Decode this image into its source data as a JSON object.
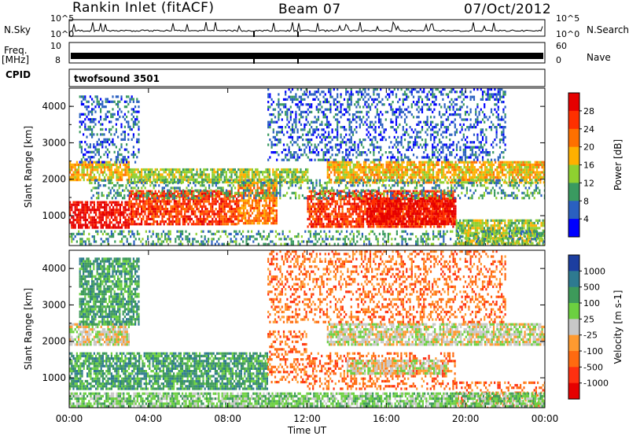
{
  "header": {
    "station": "Rankin Inlet (fitACF)",
    "beam": "Beam 07",
    "date": "07/Oct/2012"
  },
  "top_panels": {
    "nsky_label": "N.Sky",
    "nsky_ticks": [
      "10^5",
      "10^0"
    ],
    "nsearch_label": "N.Search",
    "nsearch_ticks": [
      "10^5",
      "10^0"
    ],
    "freq_label": "Freq.",
    "freq_unit": "[MHz]",
    "freq_ticks": [
      "10",
      "8"
    ],
    "nave_label": "Nave",
    "nave_ticks": [
      "60",
      "0"
    ],
    "cpid_label": "CPID",
    "cpid_value": "twofsound 3501"
  },
  "chart_data": [
    {
      "type": "heatmap",
      "name": "power",
      "ylabel": "Slant Range [km]",
      "ylim": [
        180,
        4500
      ],
      "yticks": [
        1000,
        2000,
        3000,
        4000
      ],
      "xlim": [
        0,
        24
      ],
      "colorbar": {
        "label": "Power [dB]",
        "ticks": [
          "28",
          "24",
          "20",
          "16",
          "12",
          "8",
          "4"
        ],
        "colors": [
          "#e60000",
          "#ff3000",
          "#ff7000",
          "#ffb000",
          "#8fd030",
          "#3a9a60",
          "#2a60c0",
          "#0000ff"
        ]
      },
      "bands": [
        {
          "t0": 0.0,
          "t1": 3.0,
          "r0": 700,
          "r1": 1400,
          "level": 0
        },
        {
          "t0": 3.0,
          "t1": 8.5,
          "r0": 800,
          "r1": 1700,
          "level": 1
        },
        {
          "t0": 8.5,
          "t1": 10.5,
          "r0": 800,
          "r1": 2000,
          "level": 2
        },
        {
          "t0": 12.0,
          "t1": 19.5,
          "r0": 700,
          "r1": 1700,
          "level": 1
        },
        {
          "t0": 15.0,
          "t1": 19.5,
          "r0": 800,
          "r1": 1500,
          "level": 0
        },
        {
          "t0": 19.5,
          "t1": 24.0,
          "r0": 200,
          "r1": 900,
          "level": 4
        },
        {
          "t0": 0.0,
          "t1": 3.0,
          "r0": 2000,
          "r1": 2500,
          "level": 3
        },
        {
          "t0": 13.0,
          "t1": 24.0,
          "r0": 1900,
          "r1": 2500,
          "level": 3
        },
        {
          "t0": 3.0,
          "t1": 12.0,
          "r0": 1900,
          "r1": 2300,
          "level": 4
        },
        {
          "t0": 1.0,
          "t1": 24.0,
          "r0": 1500,
          "r1": 2000,
          "level": 5
        },
        {
          "t0": 0.5,
          "t1": 3.5,
          "r0": 2500,
          "r1": 4300,
          "level": 6
        },
        {
          "t0": 10.0,
          "t1": 22.0,
          "r0": 2500,
          "r1": 4500,
          "level": 6
        },
        {
          "t0": 0.0,
          "t1": 24.0,
          "r0": 180,
          "r1": 600,
          "level": 5
        }
      ]
    },
    {
      "type": "heatmap",
      "name": "velocity",
      "ylabel": "Slant Range [km]",
      "ylim": [
        180,
        4500
      ],
      "yticks": [
        1000,
        2000,
        3000,
        4000
      ],
      "xlim": [
        0,
        24
      ],
      "xticks": [
        "00:00",
        "04:00",
        "08:00",
        "12:00",
        "16:00",
        "20:00",
        "00:00"
      ],
      "xlabel": "Time UT",
      "colorbar": {
        "label": "Velocity [m s-1]",
        "ticks": [
          "1000",
          "500",
          "100",
          "25",
          "-25",
          "-100",
          "-500",
          "-1000"
        ],
        "colors": [
          "#1c3ea0",
          "#2e7a90",
          "#3d9a5a",
          "#6cd040",
          "#c8c8c8",
          "#ff9a30",
          "#ff6a10",
          "#ff3010",
          "#e60000"
        ]
      },
      "bands": [
        {
          "t0": 0.0,
          "t1": 10.0,
          "r0": 700,
          "r1": 1700,
          "level": 2
        },
        {
          "t0": 10.0,
          "t1": 12.0,
          "r0": 900,
          "r1": 2300,
          "level": 6
        },
        {
          "t0": 12.0,
          "t1": 19.5,
          "r0": 700,
          "r1": 1700,
          "level": 6
        },
        {
          "t0": 14.0,
          "t1": 19.0,
          "r0": 1100,
          "r1": 1500,
          "level": 4
        },
        {
          "t0": 19.5,
          "t1": 24.0,
          "r0": 200,
          "r1": 900,
          "level": 6
        },
        {
          "t0": 0.0,
          "t1": 3.0,
          "r0": 1900,
          "r1": 2500,
          "level": 4
        },
        {
          "t0": 13.0,
          "t1": 24.0,
          "r0": 1900,
          "r1": 2500,
          "level": 4
        },
        {
          "t0": 0.5,
          "t1": 3.5,
          "r0": 2500,
          "r1": 4300,
          "level": 2
        },
        {
          "t0": 10.0,
          "t1": 22.0,
          "r0": 2500,
          "r1": 4500,
          "level": 6
        },
        {
          "t0": 0.0,
          "t1": 24.0,
          "r0": 180,
          "r1": 600,
          "level": 3
        }
      ]
    }
  ]
}
